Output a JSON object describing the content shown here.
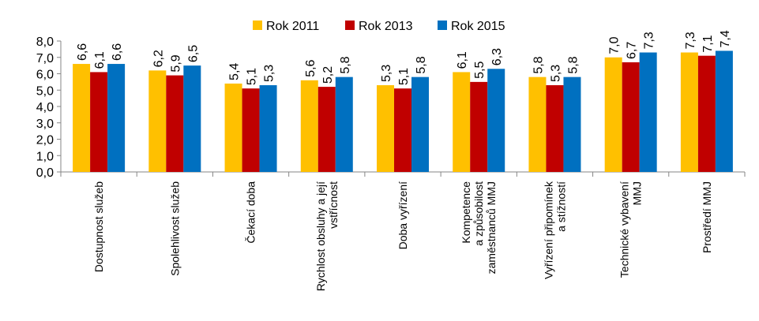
{
  "chart_data": {
    "type": "bar",
    "categories": [
      [
        "Dostupnost služeb"
      ],
      [
        "Spolehlivost služeb"
      ],
      [
        "Čekací doba"
      ],
      [
        "Rychlost obsluhy a její",
        "vstřícnost"
      ],
      [
        "Doba vyřízení"
      ],
      [
        "Kompetence",
        "a způsobilost",
        "zaměstnanců MMJ"
      ],
      [
        "Vyřízení připomínek",
        "a stížností"
      ],
      [
        "Technické vybavení",
        "MMJ"
      ],
      [
        "Prostředí MMJ"
      ]
    ],
    "series": [
      {
        "name": "Rok 2011",
        "color": "#FFC000",
        "values": [
          6.6,
          6.2,
          5.4,
          5.6,
          5.3,
          6.1,
          5.8,
          7.0,
          7.3
        ]
      },
      {
        "name": "Rok 2013",
        "color": "#C00000",
        "values": [
          6.1,
          5.9,
          5.1,
          5.2,
          5.1,
          5.5,
          5.3,
          6.7,
          7.1
        ]
      },
      {
        "name": "Rok 2015",
        "color": "#0070C0",
        "values": [
          6.6,
          6.5,
          5.3,
          5.8,
          5.8,
          6.3,
          5.8,
          7.3,
          7.4
        ]
      }
    ],
    "ylim": [
      0,
      8
    ],
    "yticks": [
      "0,0",
      "1,0",
      "2,0",
      "3,0",
      "4,0",
      "5,0",
      "6,0",
      "7,0",
      "8,0"
    ],
    "legend_position": "top",
    "grid": false,
    "title": "",
    "xlabel": "",
    "ylabel": ""
  }
}
